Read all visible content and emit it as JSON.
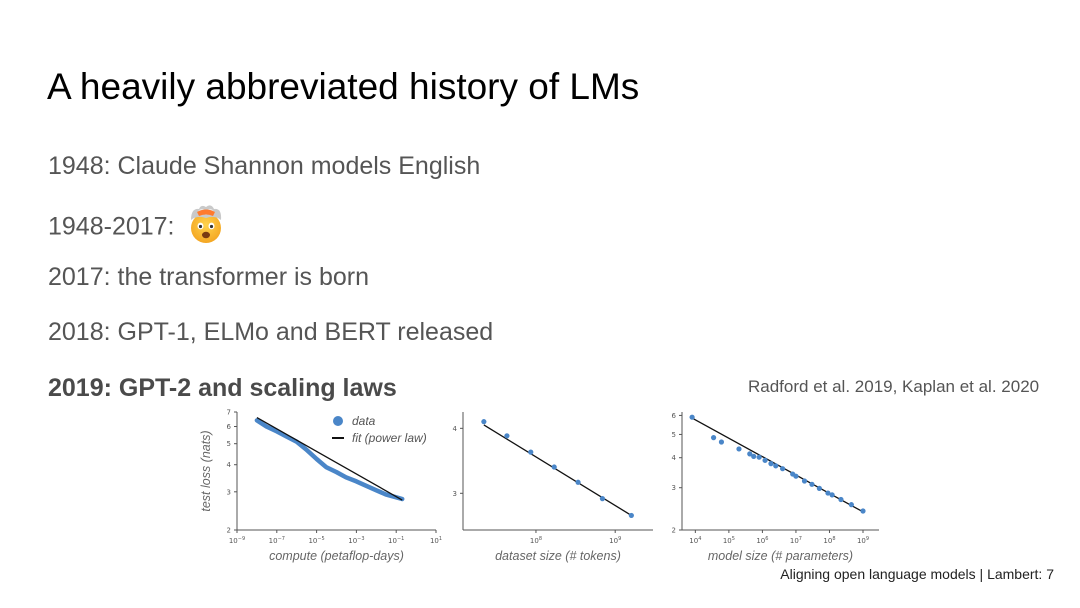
{
  "slide": {
    "title": "A heavily abbreviated history of LMs",
    "timeline": [
      "1948: Claude Shannon models English",
      "1948-2017:",
      "2017: the transformer is born",
      "2018: GPT-1, ELMo and BERT released",
      "2019: GPT-2 and scaling laws"
    ],
    "emoji_icon": "exploding-head-icon",
    "citation": "Radford et al. 2019, Kaplan et al. 2020",
    "footer": "Aligning open language models | Lambert: 7"
  },
  "colors": {
    "data": "#4a86c8",
    "fit": "#111111",
    "title": "#000000",
    "body_text": "#555555"
  },
  "chart_data": [
    {
      "type": "line",
      "xlabel": "compute (petaflop-days)",
      "ylabel": "test loss (nats)",
      "xscale": "log",
      "yscale": "log",
      "xlim": [
        1e-09,
        10
      ],
      "ylim": [
        2,
        7
      ],
      "xticks": [
        {
          "v": 1e-09,
          "base": "10",
          "exp": "−9"
        },
        {
          "v": 1e-07,
          "base": "10",
          "exp": "−7"
        },
        {
          "v": 1e-05,
          "base": "10",
          "exp": "−5"
        },
        {
          "v": 0.001,
          "base": "10",
          "exp": "−3"
        },
        {
          "v": 0.1,
          "base": "10",
          "exp": "−1"
        },
        {
          "v": 10,
          "base": "10",
          "exp": "1"
        }
      ],
      "yticks": [
        {
          "v": 2,
          "label": "2"
        },
        {
          "v": 3,
          "label": "3"
        },
        {
          "v": 4,
          "label": "4"
        },
        {
          "v": 5,
          "label": "5"
        },
        {
          "v": 6,
          "label": "6"
        },
        {
          "v": 7,
          "label": "7"
        }
      ],
      "legend": {
        "data": "data",
        "fit": "fit (power law)",
        "position": "top-right"
      },
      "data_band": {
        "x": [
          1e-08,
          3e-08,
          1e-07,
          3e-07,
          1e-06,
          3e-06,
          1e-05,
          3e-05,
          0.0001,
          0.0003,
          0.001,
          0.003,
          0.01,
          0.03,
          0.1,
          0.2
        ],
        "y": [
          6.4,
          6.0,
          5.7,
          5.4,
          5.1,
          4.7,
          4.25,
          3.9,
          3.7,
          3.5,
          3.35,
          3.2,
          3.05,
          2.92,
          2.83,
          2.78
        ]
      },
      "fit": {
        "x": [
          1e-08,
          0.2
        ],
        "y": [
          6.6,
          2.75
        ]
      }
    },
    {
      "type": "scatter",
      "xlabel": "dataset size (# tokens)",
      "xscale": "log",
      "yscale": "log",
      "xlim": [
        12000000.0,
        3000000000.0
      ],
      "ylim": [
        2.55,
        4.3
      ],
      "xticks": [
        {
          "v": 100000000.0,
          "base": "10",
          "exp": "8"
        },
        {
          "v": 1000000000.0,
          "base": "10",
          "exp": "9"
        }
      ],
      "yticks": [
        {
          "v": 3,
          "label": "3"
        },
        {
          "v": 4,
          "label": "4"
        }
      ],
      "points": {
        "x": [
          22000000.0,
          43000000.0,
          86000000.0,
          170000000.0,
          340000000.0,
          690000000.0,
          1600000000.0
        ],
        "y": [
          4.12,
          3.87,
          3.6,
          3.37,
          3.15,
          2.93,
          2.72
        ]
      },
      "fit": {
        "x": [
          22000000.0,
          1600000000.0
        ],
        "y": [
          4.06,
          2.72
        ]
      }
    },
    {
      "type": "scatter",
      "xlabel": "model size (# parameters)",
      "xscale": "log",
      "yscale": "log",
      "xlim": [
        4000.0,
        3000000000.0
      ],
      "ylim": [
        2,
        6.2
      ],
      "xticks": [
        {
          "v": 10000.0,
          "base": "10",
          "exp": "4"
        },
        {
          "v": 100000.0,
          "base": "10",
          "exp": "5"
        },
        {
          "v": 1000000.0,
          "base": "10",
          "exp": "6"
        },
        {
          "v": 10000000.0,
          "base": "10",
          "exp": "7"
        },
        {
          "v": 100000000.0,
          "base": "10",
          "exp": "8"
        },
        {
          "v": 1000000000.0,
          "base": "10",
          "exp": "9"
        }
      ],
      "yticks": [
        {
          "v": 2,
          "label": "2"
        },
        {
          "v": 3,
          "label": "3"
        },
        {
          "v": 4,
          "label": "4"
        },
        {
          "v": 5,
          "label": "5"
        },
        {
          "v": 6,
          "label": "6"
        }
      ],
      "points": {
        "x": [
          8000.0,
          35000.0,
          60000.0,
          200000.0,
          420000.0,
          550000.0,
          800000.0,
          1200000.0,
          1800000.0,
          2500000.0,
          4000000.0,
          8000000.0,
          10000000.0,
          18000000.0,
          30000000.0,
          50000000.0,
          90000000.0,
          120000000.0,
          220000000.0,
          450000000.0,
          1000000000.0
        ],
        "y": [
          5.9,
          4.85,
          4.65,
          4.35,
          4.15,
          4.05,
          4.02,
          3.9,
          3.78,
          3.7,
          3.6,
          3.42,
          3.35,
          3.2,
          3.1,
          2.98,
          2.85,
          2.8,
          2.68,
          2.55,
          2.4
        ]
      },
      "fit": {
        "x": [
          8000.0,
          1000000000.0
        ],
        "y": [
          5.85,
          2.38
        ]
      }
    }
  ]
}
